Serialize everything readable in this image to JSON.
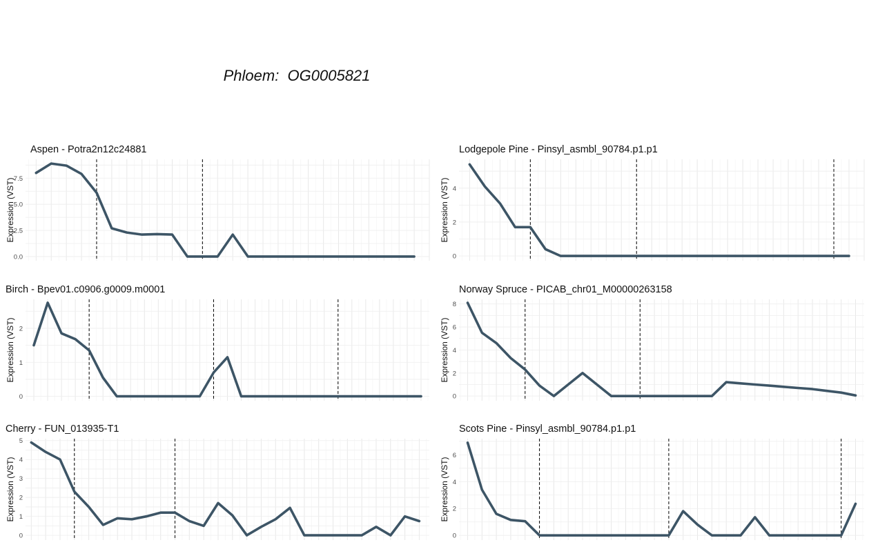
{
  "header": {
    "title": "Phloem:  OG0005821"
  },
  "chart_data": [
    {
      "type": "line",
      "title": "Aspen - Potra2n12c24881",
      "ylabel": "Expression (VST)",
      "x": [
        1,
        2,
        3,
        4,
        5,
        6,
        7,
        8,
        9,
        10,
        11,
        12,
        13,
        14,
        15,
        16,
        17,
        18,
        19,
        20,
        21,
        22,
        23,
        24,
        25,
        26
      ],
      "values": [
        8.0,
        8.9,
        8.7,
        7.9,
        6.1,
        2.7,
        2.3,
        2.1,
        2.15,
        2.1,
        0,
        0,
        0,
        2.1,
        0,
        0,
        0,
        0,
        0,
        0,
        0,
        0,
        0,
        0,
        0,
        0
      ],
      "vlines": [
        5,
        12
      ],
      "xlim": [
        0.3,
        27.0
      ],
      "ylim": [
        -0.4,
        9.3
      ],
      "yticks": [
        0,
        2.5,
        5,
        7.5
      ],
      "ytick_labels": [
        "0.0",
        "2.5",
        "5.0",
        "7.5"
      ],
      "line_color": "#3d5566"
    },
    {
      "type": "line",
      "title": "Lodgepole Pine - Pinsyl_asmbl_90784.p1.p1",
      "ylabel": "Expression (VST)",
      "x": [
        1,
        2,
        3,
        4,
        5,
        6,
        7,
        8,
        9,
        10,
        11,
        12,
        13,
        14,
        15,
        16,
        17,
        18,
        19,
        20,
        21,
        22,
        23,
        24,
        25,
        26
      ],
      "values": [
        5.4,
        4.1,
        3.1,
        1.7,
        1.7,
        0.4,
        0,
        0,
        0,
        0,
        0,
        0,
        0,
        0,
        0,
        0,
        0,
        0,
        0,
        0,
        0,
        0,
        0,
        0,
        0,
        0
      ],
      "vlines": [
        5,
        12,
        25
      ],
      "xlim": [
        0.3,
        27.0
      ],
      "ylim": [
        -0.28,
        5.7
      ],
      "yticks": [
        0,
        2,
        4
      ],
      "ytick_labels": [
        "0",
        "2",
        "4"
      ],
      "line_color": "#3d5566"
    },
    {
      "type": "line",
      "title": "Birch - Bpev01.c0906.g0009.m0001",
      "ylabel": "Expression (VST)",
      "x": [
        1,
        2,
        3,
        4,
        5,
        6,
        7,
        8,
        9,
        10,
        11,
        12,
        13,
        14,
        15,
        16,
        17,
        18,
        19,
        20,
        21,
        22,
        23,
        24,
        25,
        26,
        27,
        28,
        29
      ],
      "values": [
        1.5,
        2.75,
        1.85,
        1.68,
        1.35,
        0.55,
        0,
        0,
        0,
        0,
        0,
        0,
        0,
        0.7,
        1.15,
        0,
        0,
        0,
        0,
        0,
        0,
        0,
        0,
        0,
        0,
        0,
        0,
        0,
        0
      ],
      "vlines": [
        5,
        14,
        23
      ],
      "xlim": [
        0.4,
        29.6
      ],
      "ylim": [
        -0.13,
        2.85
      ],
      "yticks": [
        0,
        1,
        2
      ],
      "ytick_labels": [
        "0",
        "1",
        "2"
      ],
      "line_color": "#3d5566"
    },
    {
      "type": "line",
      "title": "Norway Spruce - PICAB_chr01_M00000263158",
      "ylabel": "Expression (VST)",
      "x": [
        1,
        2,
        3,
        4,
        5,
        6,
        7,
        8,
        9,
        10,
        11,
        12,
        13,
        14,
        15,
        16,
        17,
        18,
        19,
        20,
        21,
        22,
        23,
        24,
        25,
        26,
        27,
        28
      ],
      "values": [
        8.1,
        5.5,
        4.6,
        3.3,
        2.3,
        0.9,
        0,
        1.0,
        2.0,
        1.0,
        0,
        0,
        0,
        0,
        0,
        0,
        0,
        0,
        1.2,
        1.1,
        1.0,
        0.9,
        0.8,
        0.7,
        0.6,
        0.45,
        0.3,
        0.05
      ],
      "vlines": [
        5,
        13
      ],
      "xlim": [
        0.4,
        28.6
      ],
      "ylim": [
        -0.41,
        8.4
      ],
      "yticks": [
        0,
        2,
        4,
        6,
        8
      ],
      "ytick_labels": [
        "0",
        "2",
        "4",
        "6",
        "8"
      ],
      "line_color": "#3d5566"
    },
    {
      "type": "line",
      "title": "Cherry - FUN_013935-T1",
      "ylabel": "Expression (VST)",
      "x": [
        1,
        2,
        3,
        4,
        5,
        6,
        7,
        8,
        9,
        10,
        11,
        12,
        13,
        14,
        15,
        16,
        17,
        18,
        19,
        20,
        21,
        22,
        23,
        24,
        25,
        26,
        27,
        28
      ],
      "values": [
        4.9,
        4.4,
        4.0,
        2.3,
        1.5,
        0.55,
        0.9,
        0.85,
        1.0,
        1.2,
        1.2,
        0.75,
        0.5,
        1.7,
        1.05,
        0,
        0.45,
        0.85,
        1.45,
        0,
        0,
        0,
        0,
        0,
        0.45,
        0,
        1.0,
        0.75
      ],
      "vlines": [
        4,
        11
      ],
      "xlim": [
        0.6,
        28.7
      ],
      "ylim": [
        -0.25,
        5.1
      ],
      "yticks": [
        0,
        1,
        2,
        3,
        4,
        5
      ],
      "ytick_labels": [
        "0",
        "1",
        "2",
        "3",
        "4",
        "5"
      ],
      "line_color": "#3d5566"
    },
    {
      "type": "line",
      "title": "Scots Pine - Pinsyl_asmbl_90784.p1.p1",
      "ylabel": "Expression (VST)",
      "x": [
        1,
        2,
        3,
        4,
        5,
        6,
        7,
        8,
        9,
        10,
        11,
        12,
        13,
        14,
        15,
        16,
        17,
        18,
        19,
        20,
        21,
        22,
        23,
        24,
        25,
        26,
        27,
        28
      ],
      "values": [
        6.9,
        3.4,
        1.6,
        1.15,
        1.05,
        0,
        0,
        0,
        0,
        0,
        0,
        0,
        0,
        0,
        0,
        1.8,
        0.8,
        0,
        0,
        0,
        1.35,
        0,
        0,
        0,
        0,
        0,
        0,
        2.35
      ],
      "vlines": [
        6,
        15,
        27
      ],
      "xlim": [
        0.4,
        28.6
      ],
      "ylim": [
        -0.35,
        7.2
      ],
      "yticks": [
        0,
        2,
        4,
        6
      ],
      "ytick_labels": [
        "0",
        "2",
        "4",
        "6"
      ],
      "line_color": "#3d5566"
    }
  ]
}
